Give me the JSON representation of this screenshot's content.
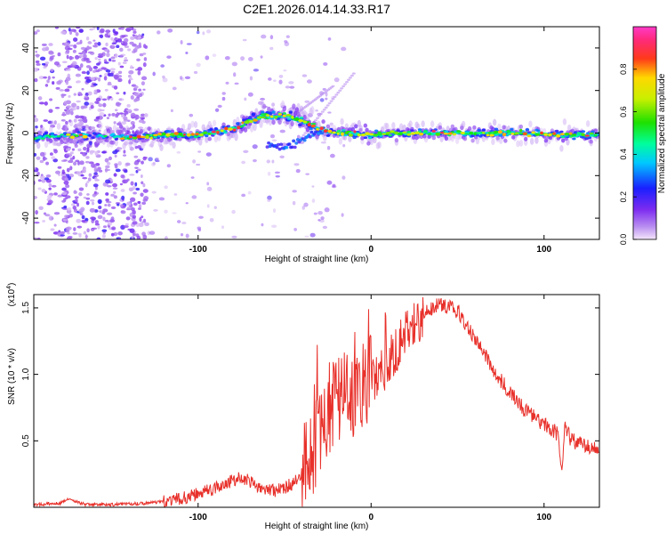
{
  "title": "C2E1.2026.014.14.33.R17",
  "chart_data": [
    {
      "type": "heatmap",
      "xlabel": "Height of straight line (km)",
      "ylabel": "Frequency (Hz)",
      "xlim": [
        -195,
        132
      ],
      "ylim": [
        -50,
        50
      ],
      "x_ticks": [
        -100,
        0,
        100
      ],
      "y_ticks": [
        -40,
        -20,
        0,
        20,
        40
      ],
      "ridge": {
        "x": [
          -195,
          -175,
          -160,
          -140,
          -120,
          -100,
          -80,
          -70,
          -60,
          -50,
          -40,
          -30,
          -20,
          -10,
          0,
          10,
          30,
          60,
          90,
          110,
          132
        ],
        "freq": [
          -2,
          -1,
          -1,
          -2,
          -1,
          -1,
          2,
          6,
          8,
          8,
          6,
          2,
          0,
          0,
          -1,
          0,
          0,
          0,
          0,
          -1,
          -1
        ]
      },
      "side_branch": {
        "x": [
          -60,
          -50,
          -40,
          -30
        ],
        "freq": [
          -5,
          -7,
          -3,
          1
        ]
      },
      "colorbar": {
        "label": "Normalized spectral amplitude",
        "ticks": [
          0.0,
          0.2,
          0.4,
          0.6,
          0.8
        ],
        "range": [
          0,
          1
        ]
      }
    },
    {
      "type": "line",
      "xlabel": "Height of straight line (km)",
      "ylabel": "SNR (10 * v/v)",
      "multiplier_label": "(x10",
      "multiplier_exp": "4",
      "multiplier_close": ")",
      "xlim": [
        -195,
        132
      ],
      "ylim": [
        0,
        1.6
      ],
      "x_ticks": [
        -100,
        0,
        100
      ],
      "y_ticks": [
        0.5,
        1.0,
        1.5
      ],
      "y_tick_labels": [
        "0.5",
        "1.0",
        "1.5"
      ],
      "series": [
        {
          "name": "SNR",
          "color": "#e8302a",
          "x": [
            -195,
            -180,
            -175,
            -165,
            -150,
            -130,
            -115,
            -100,
            -90,
            -80,
            -75,
            -65,
            -55,
            -45,
            -40,
            -35,
            -30,
            -25,
            -20,
            -15,
            -10,
            -5,
            0,
            5,
            10,
            15,
            20,
            25,
            30,
            35,
            40,
            45,
            50,
            55,
            60,
            65,
            70,
            75,
            80,
            85,
            90,
            95,
            100,
            105,
            108,
            110,
            112,
            115,
            120,
            125,
            132
          ],
          "y": [
            0.02,
            0.03,
            0.06,
            0.02,
            0.02,
            0.03,
            0.05,
            0.1,
            0.14,
            0.2,
            0.23,
            0.15,
            0.12,
            0.18,
            0.25,
            0.4,
            0.55,
            0.7,
            0.8,
            0.75,
            0.8,
            0.85,
            0.95,
            1.0,
            1.1,
            1.2,
            1.3,
            1.38,
            1.45,
            1.5,
            1.52,
            1.5,
            1.48,
            1.38,
            1.28,
            1.18,
            1.05,
            0.95,
            0.88,
            0.8,
            0.72,
            0.68,
            0.62,
            0.58,
            0.55,
            0.25,
            0.6,
            0.52,
            0.48,
            0.46,
            0.45
          ]
        }
      ]
    }
  ]
}
